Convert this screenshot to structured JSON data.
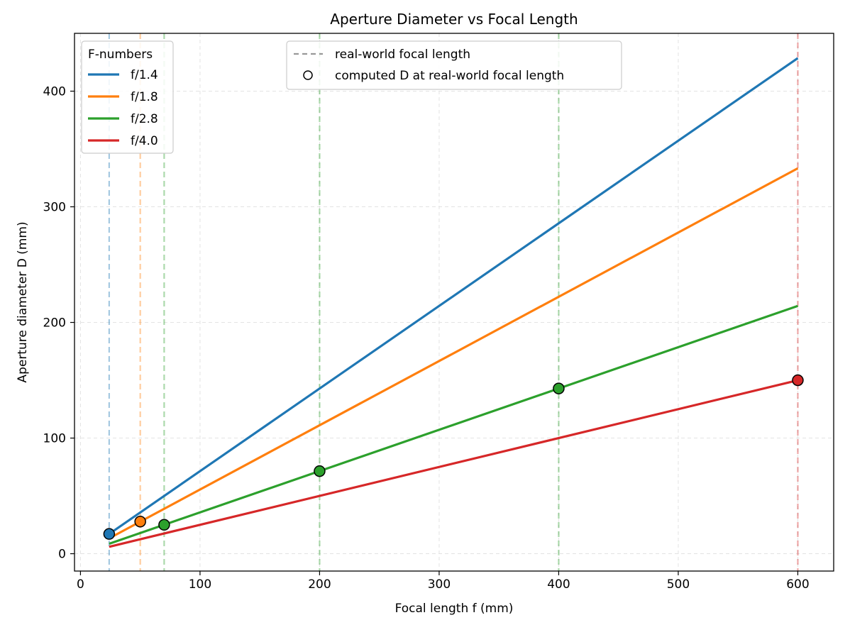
{
  "chart_data": {
    "type": "line",
    "title": "Aperture Diameter vs Focal Length",
    "xlabel": "Focal length f (mm)",
    "ylabel": "Aperture diameter D (mm)",
    "xlim": [
      -5,
      630
    ],
    "ylim": [
      -15,
      450
    ],
    "x_ticks": [
      0,
      100,
      200,
      300,
      400,
      500,
      600
    ],
    "y_ticks": [
      0,
      100,
      200,
      300,
      400
    ],
    "grid": true,
    "x_range": [
      24,
      600
    ],
    "series": [
      {
        "name": "f/1.4",
        "f_number": 1.4,
        "color": "#1f77b4",
        "x": [
          24,
          600
        ],
        "y": [
          17.1,
          428.6
        ]
      },
      {
        "name": "f/1.8",
        "f_number": 1.8,
        "color": "#ff7f0e",
        "x": [
          24,
          600
        ],
        "y": [
          13.3,
          333.3
        ]
      },
      {
        "name": "f/2.8",
        "f_number": 2.8,
        "color": "#2ca02c",
        "x": [
          24,
          600
        ],
        "y": [
          8.6,
          214.3
        ]
      },
      {
        "name": "f/4.0",
        "f_number": 4.0,
        "color": "#d62728",
        "x": [
          24,
          600
        ],
        "y": [
          6.0,
          150.0
        ]
      }
    ],
    "real_world_lenses": [
      {
        "focal_length": 24,
        "f_number": 1.4,
        "D": 17.1,
        "color": "#1f77b4"
      },
      {
        "focal_length": 50,
        "f_number": 1.8,
        "D": 27.8,
        "color": "#ff7f0e"
      },
      {
        "focal_length": 70,
        "f_number": 2.8,
        "D": 25.0,
        "color": "#2ca02c"
      },
      {
        "focal_length": 200,
        "f_number": 2.8,
        "D": 71.4,
        "color": "#2ca02c"
      },
      {
        "focal_length": 400,
        "f_number": 2.8,
        "D": 142.9,
        "color": "#2ca02c"
      },
      {
        "focal_length": 600,
        "f_number": 4.0,
        "D": 150.0,
        "color": "#d62728"
      }
    ],
    "legend_fnumbers": {
      "title": "F-numbers",
      "placement": "upper-left",
      "entries": [
        "f/1.4",
        "f/1.8",
        "f/2.8",
        "f/4.0"
      ]
    },
    "legend_markers": {
      "placement": "upper-center",
      "entries": [
        "real-world focal length",
        "computed D at real-world focal length"
      ]
    }
  }
}
